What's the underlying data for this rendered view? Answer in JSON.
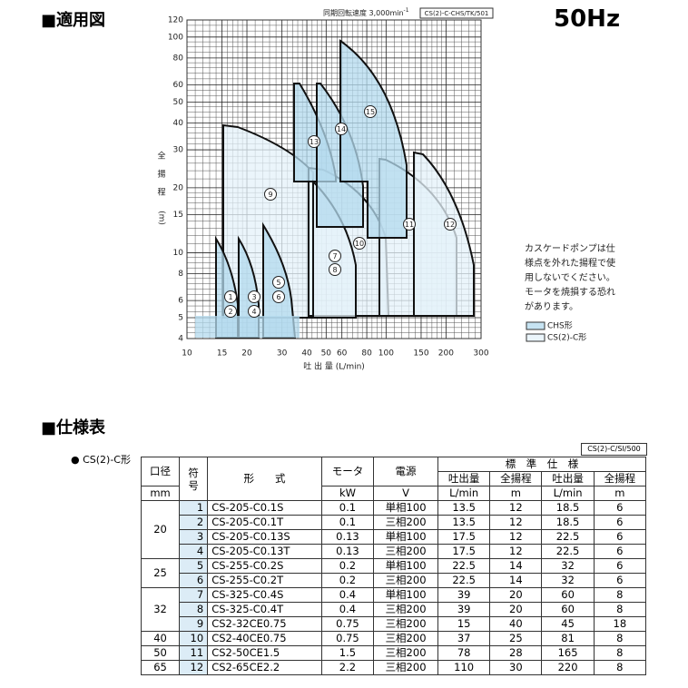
{
  "header": {
    "title": "■適用図",
    "freq": "50Hz"
  },
  "chart": {
    "note": "同期回転速度 3,000min",
    "note_sup": "-1",
    "code": "CS(2)-C-CHS/TK/501",
    "y_label": [
      "全",
      "揚",
      "程",
      "(m)"
    ],
    "x_label": "吐 出 量 (L/min)",
    "xlim": [
      10,
      300
    ],
    "ylim": [
      4,
      120
    ],
    "xticks": [
      10,
      15,
      20,
      30,
      40,
      50,
      60,
      80,
      100,
      150,
      200,
      300
    ],
    "yticks": [
      4,
      5,
      6,
      8,
      10,
      15,
      20,
      30,
      40,
      50,
      60,
      80,
      100,
      120
    ],
    "region_labels": [
      "1",
      "2",
      "3",
      "4",
      "5",
      "6",
      "7",
      "8",
      "9",
      "10",
      "11",
      "12",
      "13",
      "14",
      "15"
    ],
    "legend": [
      "CHS形",
      "CS(2)-C形"
    ],
    "caution": [
      "カスケードポンプは仕",
      "様点を外れた揚程で使",
      "用しないでください。",
      "モータを焼損する恐れ",
      "があります。"
    ]
  },
  "spec": {
    "title": "■仕様表",
    "series": "● CS(2)-C形",
    "code": "CS(2)-C/SI/500",
    "head": {
      "bore": "口径",
      "no": [
        "符",
        "号"
      ],
      "model": "形　　式",
      "motor": "モータ",
      "power": "電源",
      "std": "標　準　仕　様",
      "cols": [
        "吐出量",
        "全揚程",
        "吐出量",
        "全揚程"
      ]
    },
    "units": [
      "mm",
      "kW",
      "V",
      "L/min",
      "m",
      "L/min",
      "m"
    ],
    "groups": [
      {
        "bore": "20",
        "rows": [
          [
            "1",
            "CS-205-C0.1S",
            "0.1",
            "単相100",
            "13.5",
            "12",
            "18.5",
            "6"
          ],
          [
            "2",
            "CS-205-C0.1T",
            "0.1",
            "三相200",
            "13.5",
            "12",
            "18.5",
            "6"
          ],
          [
            "3",
            "CS-205-C0.13S",
            "0.13",
            "単相100",
            "17.5",
            "12",
            "22.5",
            "6"
          ],
          [
            "4",
            "CS-205-C0.13T",
            "0.13",
            "三相200",
            "17.5",
            "12",
            "22.5",
            "6"
          ]
        ]
      },
      {
        "bore": "25",
        "rows": [
          [
            "5",
            "CS-255-C0.2S",
            "0.2",
            "単相100",
            "22.5",
            "14",
            "32",
            "6"
          ],
          [
            "6",
            "CS-255-C0.2T",
            "0.2",
            "三相200",
            "22.5",
            "14",
            "32",
            "6"
          ]
        ]
      },
      {
        "bore": "32",
        "rows": [
          [
            "7",
            "CS-325-C0.4S",
            "0.4",
            "単相100",
            "39",
            "20",
            "60",
            "8"
          ],
          [
            "8",
            "CS-325-C0.4T",
            "0.4",
            "三相200",
            "39",
            "20",
            "60",
            "8"
          ],
          [
            "9",
            "CS2-32CE0.75",
            "0.75",
            "三相200",
            "15",
            "40",
            "45",
            "18"
          ]
        ]
      },
      {
        "bore": "40",
        "rows": [
          [
            "10",
            "CS2-40CE0.75",
            "0.75",
            "三相200",
            "37",
            "25",
            "81",
            "8"
          ]
        ]
      },
      {
        "bore": "50",
        "rows": [
          [
            "11",
            "CS2-50CE1.5",
            "1.5",
            "三相200",
            "78",
            "28",
            "165",
            "8"
          ]
        ]
      },
      {
        "bore": "65",
        "rows": [
          [
            "12",
            "CS2-65CE2.2",
            "2.2",
            "三相200",
            "110",
            "30",
            "220",
            "8"
          ]
        ]
      }
    ]
  }
}
